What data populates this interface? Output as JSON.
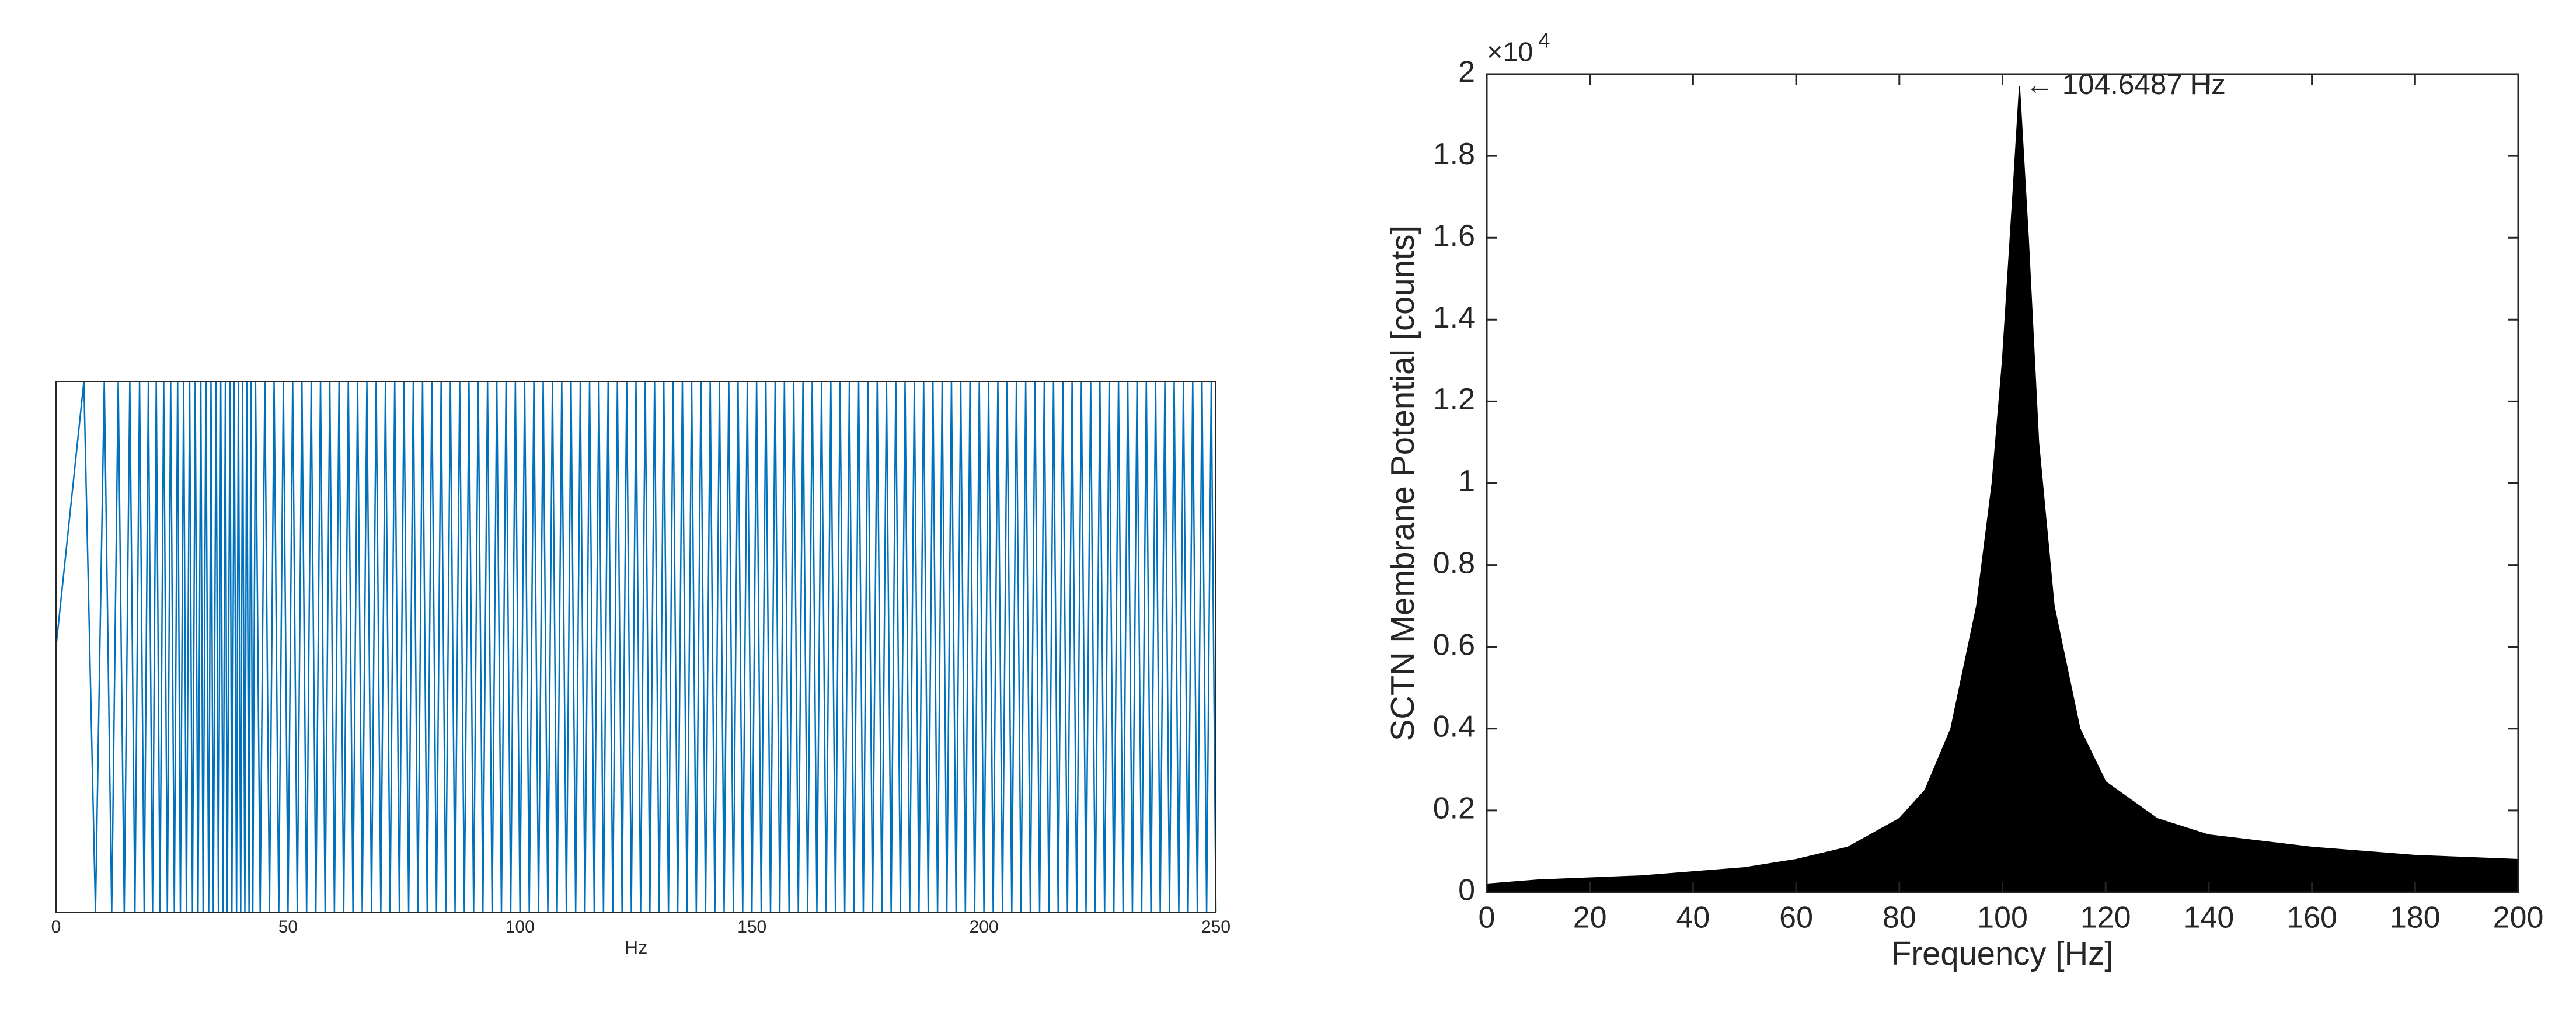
{
  "chart_data": [
    {
      "type": "line",
      "xlabel": "Hz",
      "color": "#0072bd",
      "x": [
        0,
        6,
        8.5,
        10.4,
        12,
        13.4,
        14.7,
        15.9,
        17,
        18,
        19,
        19.9,
        20.8,
        21.6,
        22.4,
        23.2,
        24,
        24.7,
        25.5,
        26.2,
        26.8,
        27.5,
        28.1,
        28.8,
        29.4,
        30,
        30.6,
        31.2,
        31.7,
        32.3,
        32.9,
        33.4,
        33.9,
        34.5,
        35,
        35.5,
        36,
        36.5,
        36.9,
        37.5,
        37.9,
        38.4,
        38.9,
        39.3,
        39.8,
        40.2,
        40.7,
        41.1,
        41.6,
        42,
        42.4,
        43,
        44,
        45,
        46,
        47,
        48,
        49,
        50,
        51,
        52,
        53,
        54,
        55,
        56,
        57,
        58,
        59,
        60,
        61,
        62,
        63,
        64,
        65,
        66,
        67,
        68,
        69,
        70,
        71,
        72,
        73,
        74,
        75,
        76,
        77,
        78,
        79,
        80,
        81,
        82,
        83,
        84,
        85,
        86,
        87,
        88,
        89,
        90,
        91,
        92,
        93,
        94,
        95,
        96,
        97,
        98,
        99,
        100,
        101,
        102,
        103,
        104,
        105,
        106,
        107,
        108,
        109,
        110,
        111,
        112,
        113,
        114,
        115,
        116,
        117,
        118,
        119,
        120,
        121,
        122,
        123,
        124,
        125,
        126,
        127,
        128,
        129,
        130,
        131,
        132,
        133,
        134,
        135,
        136,
        137,
        138,
        139,
        140,
        141,
        142,
        143,
        144,
        145,
        146,
        147,
        148,
        149,
        150,
        151,
        152,
        153,
        154,
        155,
        156,
        157,
        158,
        159,
        160,
        161,
        162,
        163,
        164,
        165,
        166,
        167,
        168,
        169,
        170,
        171,
        172,
        173,
        174,
        175,
        176,
        177,
        178,
        179,
        180,
        181,
        182,
        183,
        184,
        185,
        186,
        187,
        188,
        189,
        190,
        191,
        192,
        193,
        194,
        195,
        196,
        197,
        198,
        199,
        200,
        201,
        202,
        203,
        204,
        205,
        206,
        207,
        208,
        209,
        210,
        211,
        212,
        213,
        214,
        215,
        216,
        217,
        218,
        219,
        220,
        221,
        222,
        223,
        224,
        225,
        226,
        227,
        228,
        229,
        230,
        231,
        232,
        233,
        234,
        235,
        236,
        237,
        238,
        239,
        240,
        241,
        242,
        243,
        244,
        245,
        246,
        247,
        248,
        249,
        250
      ],
      "values": [
        0,
        1,
        -1,
        1,
        -1,
        1,
        -1,
        1,
        -1,
        1,
        -1,
        1,
        -1,
        1,
        -1,
        1,
        -1,
        1,
        -1,
        1,
        -1,
        1,
        -1,
        1,
        -1,
        1,
        -1,
        1,
        -1,
        1,
        -1,
        1,
        -1,
        1,
        -1,
        1,
        -1,
        1,
        -1,
        1,
        -1,
        1,
        -1,
        1,
        -1,
        1,
        -1,
        1,
        -1,
        1,
        -1,
        1,
        -1,
        1,
        -1,
        1,
        -1,
        1,
        -1,
        1,
        -1,
        1,
        -1,
        1,
        -1,
        1,
        -1,
        1,
        -1,
        1,
        -1,
        1,
        -1,
        1,
        -1,
        1,
        -1,
        1,
        -1,
        1,
        -1,
        1,
        -1,
        1,
        -1,
        1,
        -1,
        1,
        -1,
        1,
        -1,
        1,
        -1,
        1,
        -1,
        1,
        -1,
        1,
        -1,
        1,
        -1,
        1,
        -1,
        1,
        -1,
        1,
        -1,
        1,
        -1,
        1,
        -1,
        1,
        -1,
        1,
        -1,
        1,
        -1,
        1,
        -1,
        1,
        -1,
        1,
        -1,
        1,
        -1,
        1,
        -1,
        1,
        -1,
        1,
        -1,
        1,
        -1,
        1,
        -1,
        1,
        -1,
        1,
        -1,
        1,
        -1,
        1,
        -1,
        1,
        -1,
        1,
        -1,
        1,
        -1,
        1,
        -1,
        1,
        -1,
        1,
        -1,
        1,
        -1,
        1,
        -1,
        1,
        -1,
        1,
        -1,
        1,
        -1,
        1,
        -1,
        1,
        -1,
        1,
        -1,
        1,
        -1,
        1,
        -1,
        1,
        -1,
        1,
        -1,
        1,
        -1,
        1,
        -1,
        1,
        -1,
        1,
        -1,
        1,
        -1,
        1,
        -1,
        1,
        -1,
        1,
        -1,
        1,
        -1,
        1,
        -1,
        1,
        -1,
        1,
        -1,
        1,
        -1,
        1,
        -1,
        1,
        -1,
        1,
        -1,
        1,
        -1,
        1,
        -1,
        1,
        -1,
        1,
        -1,
        1,
        -1,
        1,
        -1,
        1,
        -1,
        1,
        -1,
        1,
        -1,
        1,
        -1,
        1,
        -1,
        1,
        -1,
        1,
        -1,
        1,
        -1,
        1,
        -1,
        1,
        -1,
        1,
        -1,
        1,
        -1,
        1,
        -1,
        1,
        -1,
        1,
        -1,
        1,
        -1,
        1,
        -1,
        1,
        -1
      ],
      "xlim": [
        0,
        250
      ],
      "xticks": [
        0,
        50,
        100,
        150,
        200,
        250
      ],
      "ylim": [
        -1,
        1
      ]
    },
    {
      "type": "area",
      "xlabel": "Frequency [Hz]",
      "ylabel": "SCTN Membrane Potential [counts]",
      "y_multiplier": {
        "base": "×10",
        "power": "4"
      },
      "annotation": "← 104.6487 Hz",
      "color": "#000000",
      "x": [
        0,
        10,
        20,
        30,
        40,
        50,
        60,
        70,
        80,
        85,
        90,
        95,
        98,
        100,
        102,
        103.3,
        105,
        107,
        110,
        115,
        120,
        130,
        140,
        160,
        180,
        200
      ],
      "values": [
        0.02,
        0.03,
        0.035,
        0.04,
        0.05,
        0.06,
        0.08,
        0.11,
        0.18,
        0.25,
        0.4,
        0.7,
        1.0,
        1.3,
        1.7,
        1.97,
        1.6,
        1.1,
        0.7,
        0.4,
        0.27,
        0.18,
        0.14,
        0.11,
        0.09,
        0.08
      ],
      "xlim": [
        0,
        200
      ],
      "xticks": [
        0,
        20,
        40,
        60,
        80,
        100,
        120,
        140,
        160,
        180,
        200
      ],
      "ylim": [
        0,
        2
      ],
      "yticks": [
        0,
        0.2,
        0.4,
        0.6,
        0.8,
        1,
        1.2,
        1.4,
        1.6,
        1.8,
        2
      ]
    }
  ]
}
